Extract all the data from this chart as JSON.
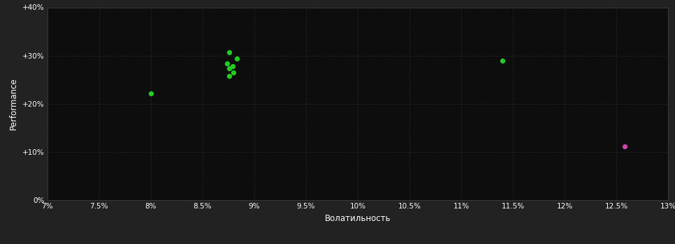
{
  "background_color": "#222222",
  "plot_bg_color": "#0d0d0d",
  "grid_color": "#2d3d2d",
  "text_color": "#ffffff",
  "xlabel": "Волатильность",
  "ylabel": "Performance",
  "xlim": [
    0.07,
    0.13
  ],
  "ylim": [
    0.0,
    0.4
  ],
  "xticks": [
    0.07,
    0.075,
    0.08,
    0.085,
    0.09,
    0.095,
    0.1,
    0.105,
    0.11,
    0.115,
    0.12,
    0.125,
    0.13
  ],
  "xtick_labels": [
    "7%",
    "7.5%",
    "8%",
    "8.5%",
    "9%",
    "9.5%",
    "10%",
    "10.5%",
    "11%",
    "11.5%",
    "12%",
    "12.5%",
    "13%"
  ],
  "yticks": [
    0.0,
    0.1,
    0.2,
    0.3,
    0.4
  ],
  "ytick_labels": [
    "0%",
    "+10%",
    "+20%",
    "+30%",
    "+40%"
  ],
  "green_points": [
    [
      0.0876,
      0.307
    ],
    [
      0.0883,
      0.294
    ],
    [
      0.0874,
      0.283
    ],
    [
      0.0879,
      0.278
    ],
    [
      0.0876,
      0.274
    ],
    [
      0.088,
      0.265
    ],
    [
      0.0876,
      0.258
    ],
    [
      0.08,
      0.222
    ],
    [
      0.114,
      0.29
    ]
  ],
  "green_color": "#22cc22",
  "magenta_points": [
    [
      0.1258,
      0.112
    ]
  ],
  "magenta_color": "#cc44aa",
  "marker_size": 18,
  "grid_linestyle": ":",
  "grid_linewidth": 0.6
}
